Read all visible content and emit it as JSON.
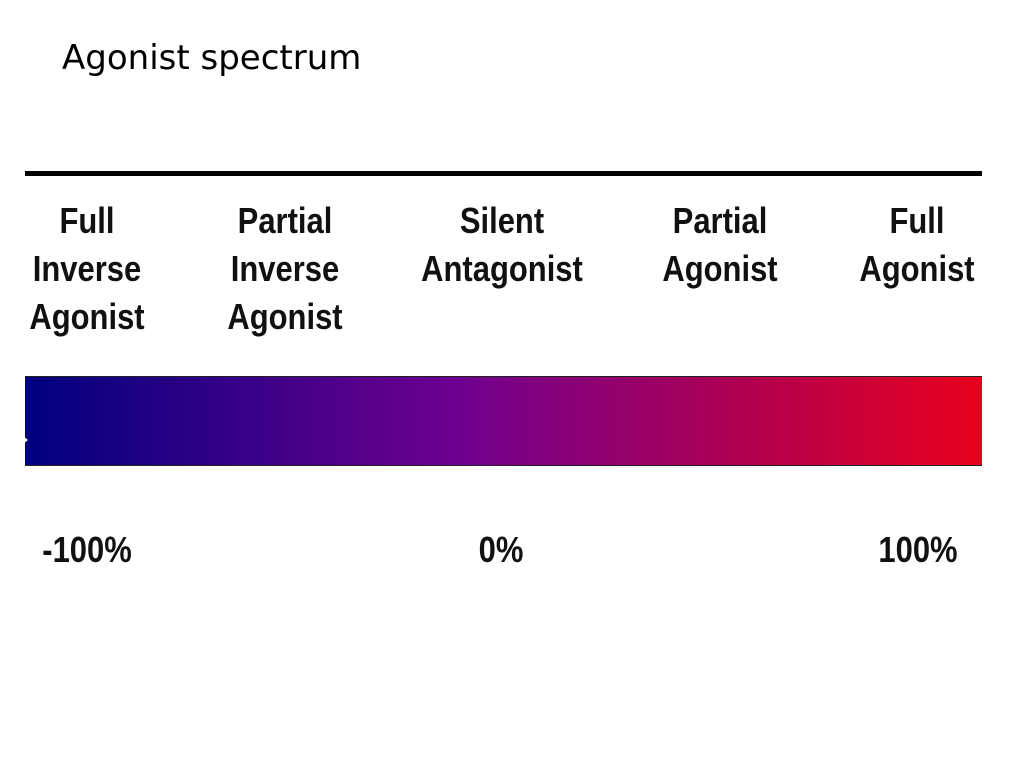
{
  "slide": {
    "title": "Agonist spectrum"
  },
  "spectrum": {
    "categories": [
      {
        "lines": [
          "Full",
          "Inverse",
          "Agonist"
        ]
      },
      {
        "lines": [
          "Partial",
          "Inverse",
          "Agonist"
        ]
      },
      {
        "lines": [
          "Silent",
          "Antagonist"
        ]
      },
      {
        "lines": [
          "Partial",
          "Agonist"
        ]
      },
      {
        "lines": [
          "Full",
          "Agonist"
        ]
      }
    ],
    "gradient": {
      "start_color": "#00007e",
      "mid_color": "#6e0090",
      "end_color": "#e8001c"
    },
    "scale_labels": [
      "-100%",
      "0%",
      "100%"
    ]
  }
}
